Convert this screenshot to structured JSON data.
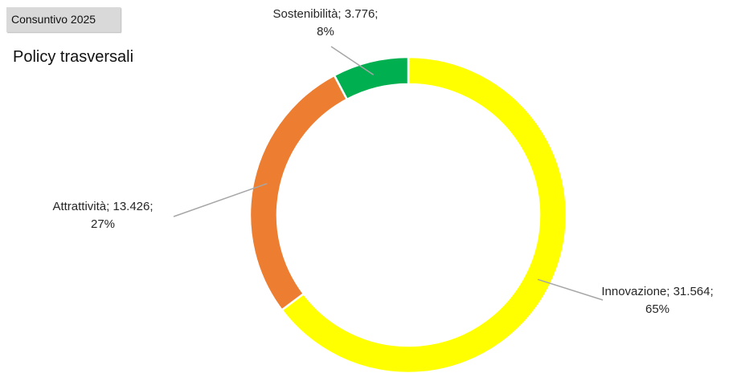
{
  "header": {
    "badge": "Consuntivo 2025",
    "title": "Policy trasversali"
  },
  "chart_data": {
    "type": "pie",
    "donut": true,
    "title": "Policy trasversali",
    "legend": "none",
    "slices": [
      {
        "name": "Innovazione",
        "value": 31564,
        "value_label": "31.564",
        "percent_label": "65%",
        "color": "#ffff00"
      },
      {
        "name": "Attrattività",
        "value": 13426,
        "value_label": "13.426",
        "percent_label": "27%",
        "color": "#ed7d31"
      },
      {
        "name": "Sostenibilità",
        "value": 3776,
        "value_label": "3.776",
        "percent_label": "8%",
        "color": "#00b050"
      }
    ]
  }
}
